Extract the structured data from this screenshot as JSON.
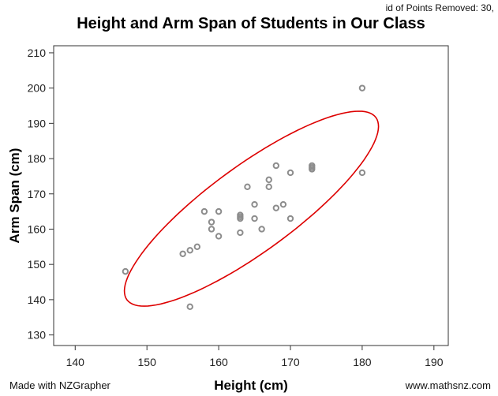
{
  "chart_data": {
    "type": "scatter",
    "title": "Height and Arm Span of Students in Our Class",
    "xlabel": "Height (cm)",
    "ylabel": "Arm Span (cm)",
    "xlim": [
      137,
      192
    ],
    "ylim": [
      127,
      212
    ],
    "xticks": [
      140,
      150,
      160,
      170,
      180,
      190
    ],
    "yticks": [
      130,
      140,
      150,
      160,
      170,
      180,
      190,
      200,
      210
    ],
    "grid": false,
    "points": [
      {
        "x": 147,
        "y": 148
      },
      {
        "x": 155,
        "y": 153
      },
      {
        "x": 156,
        "y": 154
      },
      {
        "x": 156,
        "y": 138
      },
      {
        "x": 157,
        "y": 155
      },
      {
        "x": 158,
        "y": 165
      },
      {
        "x": 159,
        "y": 162
      },
      {
        "x": 159,
        "y": 160
      },
      {
        "x": 160,
        "y": 165
      },
      {
        "x": 160,
        "y": 158
      },
      {
        "x": 163,
        "y": 164
      },
      {
        "x": 163,
        "y": 163.5
      },
      {
        "x": 163,
        "y": 163
      },
      {
        "x": 163,
        "y": 159
      },
      {
        "x": 164,
        "y": 172
      },
      {
        "x": 165,
        "y": 167
      },
      {
        "x": 165,
        "y": 163
      },
      {
        "x": 166,
        "y": 160
      },
      {
        "x": 167,
        "y": 174
      },
      {
        "x": 167,
        "y": 172
      },
      {
        "x": 168,
        "y": 178
      },
      {
        "x": 168,
        "y": 166
      },
      {
        "x": 169,
        "y": 167
      },
      {
        "x": 170,
        "y": 176
      },
      {
        "x": 170,
        "y": 163
      },
      {
        "x": 173,
        "y": 178
      },
      {
        "x": 173,
        "y": 177.5
      },
      {
        "x": 173,
        "y": 177
      },
      {
        "x": 180,
        "y": 200
      },
      {
        "x": 180,
        "y": 176
      }
    ],
    "annotation": "id of Points Removed: 30,",
    "point_color": "#8c8c8c",
    "ellipse_color": "#dd0000"
  },
  "footer": {
    "left": "Made with NZGrapher",
    "right": "www.mathsnz.com"
  }
}
